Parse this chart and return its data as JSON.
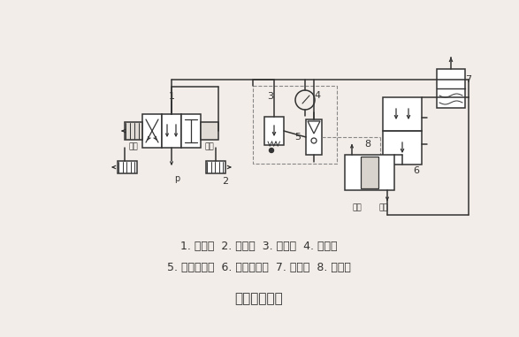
{
  "bg_color": "#f2ede8",
  "line_color": "#333333",
  "title": "夹具系统回路",
  "legend_line1": "1. 换向阀  2. 消声器  3. 减压阀  4. 压力表",
  "legend_line2": "5. 快速放气阀  6. 气液增压器  7. 储油器  8. 液压缸",
  "figsize": [
    5.87,
    3.81
  ],
  "dpi": 100
}
